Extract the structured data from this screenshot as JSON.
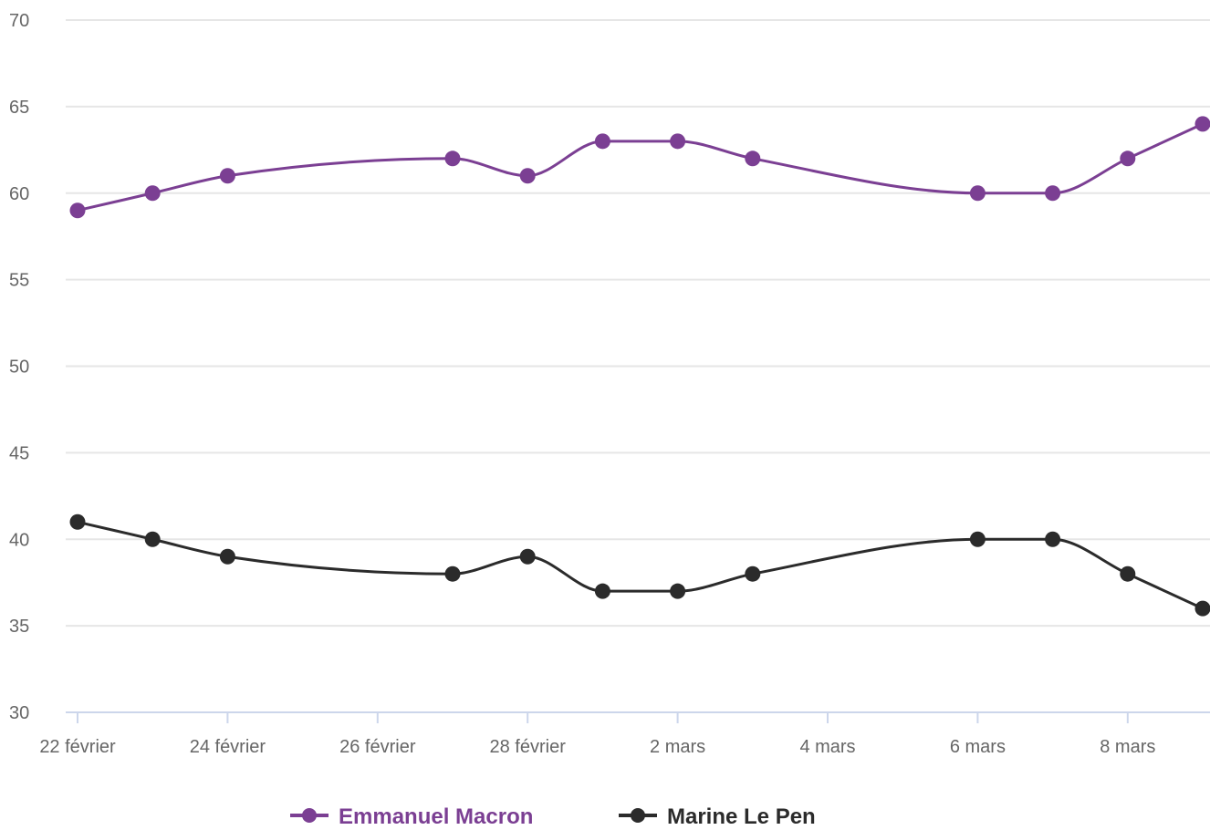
{
  "chart_data": {
    "type": "line",
    "x": [
      "2022-02-22",
      "2022-02-23",
      "2022-02-24",
      "2022-02-27",
      "2022-02-28",
      "2022-03-01",
      "2022-03-02",
      "2022-03-03",
      "2022-03-06",
      "2022-03-07",
      "2022-03-08",
      "2022-03-09"
    ],
    "x_ticks": [
      "2022-02-22",
      "2022-02-24",
      "2022-02-26",
      "2022-02-28",
      "2022-03-02",
      "2022-03-04",
      "2022-03-06",
      "2022-03-08"
    ],
    "x_tick_labels": [
      "22 février",
      "24 février",
      "26 février",
      "28 février",
      "2 mars",
      "4 mars",
      "6 mars",
      "8 mars"
    ],
    "xlim": [
      "2022-02-22",
      "2022-03-09"
    ],
    "ylim": [
      30,
      70
    ],
    "y_ticks": [
      30,
      35,
      40,
      45,
      50,
      55,
      60,
      65,
      70
    ],
    "grid": true,
    "legend_position": "bottom-center",
    "series": [
      {
        "name": "Emmanuel Macron",
        "color": "#7b3f93",
        "values": [
          59,
          60,
          61,
          62,
          61,
          63,
          63,
          62,
          60,
          60,
          62,
          64
        ]
      },
      {
        "name": "Marine Le Pen",
        "color": "#2b2b2b",
        "values": [
          41,
          40,
          39,
          38,
          39,
          37,
          37,
          38,
          40,
          40,
          38,
          36
        ]
      }
    ]
  }
}
